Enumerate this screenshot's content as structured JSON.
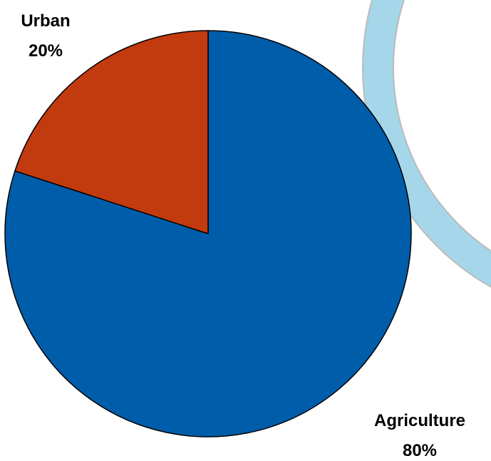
{
  "chart_data": {
    "type": "pie",
    "slices": [
      {
        "label": "Agriculture",
        "value": 80,
        "value_label": "80%",
        "color": "#005DAA"
      },
      {
        "label": "Urban",
        "value": 20,
        "value_label": "20%",
        "color": "#C23B0E"
      }
    ],
    "start_angle": "12 o'clock",
    "direction": "clockwise",
    "legend": "none",
    "labels": "outside"
  },
  "decor": {
    "ring_color": "#A6D6EA",
    "ring_border": "#BBBBBB"
  }
}
